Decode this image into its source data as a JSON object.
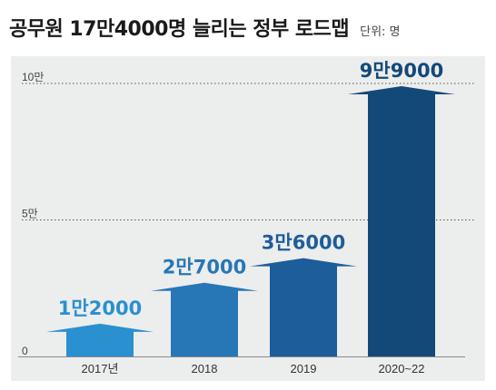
{
  "header": {
    "title": "공무원 17만4000명 늘리는 정부 로드맵",
    "unit": "단위: 명"
  },
  "chart_data": {
    "type": "bar",
    "title": "공무원 17만4000명 늘리는 정부 로드맵",
    "unit": "단위: 명",
    "categories": [
      "2017년",
      "2018",
      "2019",
      "2020~22"
    ],
    "values": [
      12000,
      27000,
      36000,
      99000
    ],
    "value_labels": [
      "1만2000",
      "2만7000",
      "3만6000",
      "9만9000"
    ],
    "yticks": [
      {
        "value": 0,
        "label": "0"
      },
      {
        "value": 50000,
        "label": "5만"
      },
      {
        "value": 100000,
        "label": "10만"
      }
    ],
    "ylim": [
      0,
      100000
    ],
    "grid": "dotted at 5만 and 10만",
    "colors": {
      "bars": [
        "#2a90cf",
        "#2777b6",
        "#1d5d99",
        "#134978"
      ],
      "labels": [
        "#2a90cf",
        "#2777b6",
        "#1d5d99",
        "#134978"
      ],
      "panel": "#eceded"
    }
  }
}
